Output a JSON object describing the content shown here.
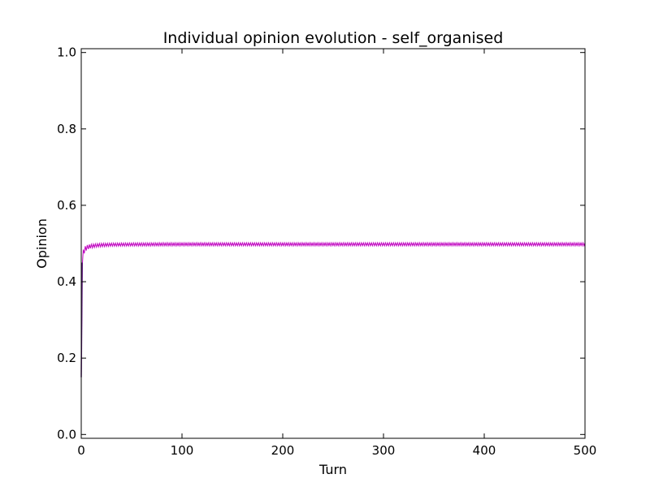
{
  "chart_data": {
    "type": "line",
    "title": "Individual opinion evolution - self_organised",
    "xlabel": "Turn",
    "ylabel": "Opinion",
    "xlim": [
      0,
      500
    ],
    "ylim": [
      -0.01,
      1.01
    ],
    "xticks": [
      0,
      100,
      200,
      300,
      400,
      500
    ],
    "xtick_labels": [
      "0",
      "100",
      "200",
      "300",
      "400",
      "500"
    ],
    "yticks": [
      0.0,
      0.2,
      0.4,
      0.6,
      0.8,
      1.0
    ],
    "ytick_labels": [
      "0.0",
      "0.2",
      "0.4",
      "0.6",
      "0.8",
      "1.0"
    ],
    "grid": false,
    "line_color": "#bf00bf",
    "series": [
      {
        "x": [
          0,
          1,
          2,
          3,
          4,
          5,
          6,
          8,
          10,
          15,
          20,
          30,
          50,
          100,
          200,
          300,
          400,
          500
        ],
        "y": [
          0.15,
          0.45,
          0.475,
          0.482,
          0.486,
          0.488,
          0.49,
          0.492,
          0.493,
          0.495,
          0.496,
          0.497,
          0.4975,
          0.498,
          0.498,
          0.498,
          0.498,
          0.498
        ],
        "spread": [
          0.01,
          0.02,
          0.018,
          0.016,
          0.014,
          0.013,
          0.012,
          0.011,
          0.01,
          0.009,
          0.009,
          0.008,
          0.008,
          0.008,
          0.008,
          0.008,
          0.008,
          0.008
        ]
      }
    ]
  }
}
